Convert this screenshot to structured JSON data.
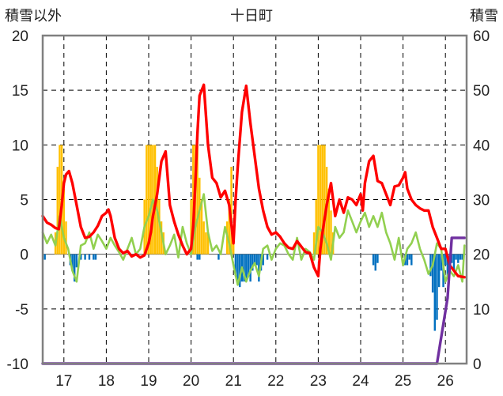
{
  "chart_data": {
    "type": "line",
    "title": "十日町",
    "left_axis_label": "積雪以外",
    "right_axis_label": "積雪",
    "ylim_left": [
      -10,
      20
    ],
    "yticks_left": [
      20,
      15,
      10,
      5,
      0,
      -5,
      -10
    ],
    "ylim_right": [
      0,
      60
    ],
    "yticks_right": [
      60,
      50,
      40,
      30,
      20,
      10,
      0
    ],
    "xlim": [
      16.5,
      26.5
    ],
    "xticks": [
      17,
      18,
      19,
      20,
      21,
      22,
      23,
      24,
      25,
      26
    ],
    "grid": true,
    "colors": {
      "red_series": "#ff0000",
      "green_series": "#92d050",
      "purple_series": "#7030a0",
      "orange_bars": "#ffc000",
      "blue_bars": "#0070c0",
      "frame": "#808080",
      "grid": "#000000"
    },
    "red_series": {
      "x": [
        16.5,
        16.6,
        16.7,
        16.8,
        16.88,
        16.95,
        17.0,
        17.05,
        17.12,
        17.2,
        17.3,
        17.4,
        17.5,
        17.6,
        17.7,
        17.8,
        17.9,
        18.0,
        18.05,
        18.1,
        18.2,
        18.3,
        18.4,
        18.5,
        18.6,
        18.7,
        18.8,
        18.9,
        19.0,
        19.05,
        19.1,
        19.2,
        19.3,
        19.4,
        19.5,
        19.6,
        19.7,
        19.8,
        19.9,
        20.0,
        20.05,
        20.1,
        20.15,
        20.2,
        20.3,
        20.4,
        20.5,
        20.6,
        20.7,
        20.8,
        20.9,
        21.0,
        21.05,
        21.1,
        21.2,
        21.3,
        21.4,
        21.5,
        21.6,
        21.7,
        21.8,
        21.9,
        22.0,
        22.1,
        22.2,
        22.3,
        22.4,
        22.5,
        22.6,
        22.7,
        22.8,
        22.9,
        23.0,
        23.05,
        23.1,
        23.2,
        23.3,
        23.4,
        23.5,
        23.6,
        23.7,
        23.8,
        23.9,
        24.0,
        24.05,
        24.1,
        24.2,
        24.3,
        24.4,
        24.5,
        24.6,
        24.7,
        24.8,
        24.9,
        25.0,
        25.05,
        25.1,
        25.2,
        25.3,
        25.4,
        25.5,
        25.6,
        25.7,
        25.8,
        25.9,
        26.0,
        26.1,
        26.2,
        26.3,
        26.45
      ],
      "values": [
        3.5,
        2.9,
        2.7,
        2.4,
        2.3,
        4.5,
        6.5,
        7.3,
        7.6,
        6.5,
        4.5,
        2.5,
        1.5,
        1.6,
        2.0,
        2.6,
        3.5,
        3.8,
        4.1,
        3.5,
        1.5,
        0.5,
        0.1,
        0.3,
        -0.2,
        0.0,
        -0.3,
        -0.1,
        1.0,
        2.0,
        3.5,
        5.5,
        8.5,
        9.4,
        4.5,
        3.0,
        1.8,
        0.8,
        0.0,
        0.5,
        2.5,
        6.5,
        11.0,
        14.5,
        15.5,
        10.0,
        7.0,
        6.5,
        5.2,
        5.8,
        4.5,
        1.0,
        5.0,
        8.0,
        13.0,
        15.4,
        12.0,
        9.0,
        6.0,
        4.0,
        2.5,
        1.8,
        2.0,
        1.6,
        1.0,
        0.6,
        0.5,
        1.2,
        0.7,
        0.2,
        0.1,
        -1.2,
        -2.0,
        0.5,
        2.0,
        4.5,
        6.5,
        3.5,
        5.0,
        3.8,
        5.2,
        5.0,
        4.5,
        5.5,
        4.0,
        6.5,
        8.5,
        9.0,
        6.7,
        6.5,
        5.5,
        4.5,
        6.2,
        6.3,
        7.0,
        7.5,
        6.0,
        5.0,
        4.5,
        4.2,
        4.0,
        4.0,
        2.5,
        1.5,
        0.5,
        0.5,
        -1.0,
        -1.5,
        -2.0,
        -2.1
      ]
    },
    "green_series": {
      "x": [
        16.5,
        16.6,
        16.7,
        16.8,
        16.9,
        17.0,
        17.1,
        17.2,
        17.3,
        17.4,
        17.5,
        17.6,
        17.7,
        17.8,
        17.9,
        18.0,
        18.1,
        18.2,
        18.3,
        18.4,
        18.5,
        18.6,
        18.7,
        18.8,
        18.9,
        19.0,
        19.1,
        19.2,
        19.3,
        19.4,
        19.5,
        19.6,
        19.7,
        19.8,
        19.9,
        20.0,
        20.1,
        20.2,
        20.3,
        20.4,
        20.5,
        20.6,
        20.7,
        20.8,
        20.9,
        21.0,
        21.1,
        21.2,
        21.3,
        21.4,
        21.5,
        21.6,
        21.7,
        21.8,
        21.9,
        22.0,
        22.1,
        22.2,
        22.3,
        22.4,
        22.5,
        22.6,
        22.7,
        22.8,
        22.9,
        23.0,
        23.1,
        23.2,
        23.3,
        23.4,
        23.5,
        23.6,
        23.7,
        23.8,
        23.9,
        24.0,
        24.1,
        24.2,
        24.3,
        24.4,
        24.5,
        24.6,
        24.7,
        24.8,
        24.9,
        25.0,
        25.1,
        25.2,
        25.3,
        25.4,
        25.5,
        25.6,
        25.7,
        25.8,
        25.9,
        26.0,
        26.1,
        26.2,
        26.3,
        26.4,
        26.45
      ],
      "values": [
        2.0,
        1.0,
        1.8,
        0.8,
        3.5,
        1.5,
        0.5,
        -1.5,
        -2.5,
        0.8,
        1.0,
        2.0,
        0.5,
        1.8,
        1.2,
        0.5,
        1.5,
        0.8,
        0.2,
        -0.5,
        0.5,
        1.5,
        0.0,
        0.5,
        2.5,
        3.5,
        5.0,
        4.0,
        2.0,
        0.0,
        0.8,
        1.8,
        -0.3,
        2.5,
        1.0,
        0.0,
        2.5,
        4.0,
        5.5,
        2.0,
        0.3,
        0.8,
        0.0,
        2.5,
        1.0,
        -1.0,
        -2.8,
        -1.2,
        -2.5,
        -1.5,
        -0.8,
        -2.0,
        0.5,
        0.8,
        -0.5,
        0.5,
        1.0,
        0.8,
        0.0,
        -0.5,
        1.5,
        -0.5,
        0.5,
        0.2,
        -0.5,
        2.5,
        2.0,
        1.0,
        -0.5,
        2.5,
        1.5,
        2.0,
        4.0,
        3.0,
        2.0,
        3.0,
        3.8,
        2.5,
        3.5,
        2.5,
        3.8,
        2.0,
        1.0,
        -0.5,
        1.5,
        -1.0,
        0.5,
        1.0,
        2.0,
        0.5,
        -0.5,
        -1.8,
        -1.0,
        1.0,
        0.5,
        -2.5,
        -1.5,
        -2.0,
        -1.0,
        -2.5,
        0.8
      ]
    },
    "purple_series": {
      "axis": "right",
      "x": [
        16.5,
        25.8,
        26.05,
        26.15,
        26.45
      ],
      "values": [
        0,
        0,
        12,
        23,
        23
      ]
    },
    "orange_bars": {
      "x": [
        16.8,
        16.85,
        16.9,
        16.95,
        17.0,
        17.05,
        18.9,
        18.95,
        19.0,
        19.05,
        19.1,
        19.15,
        19.2,
        19.25,
        19.3,
        19.35,
        20.0,
        20.05,
        20.1,
        20.15,
        20.2,
        20.25,
        20.3,
        20.35,
        20.4,
        20.85,
        20.9,
        20.95,
        21.0,
        22.9,
        22.95,
        23.0,
        23.05,
        23.1,
        23.15,
        23.2,
        23.25,
        23.3,
        23.35
      ],
      "values": [
        2,
        8,
        10,
        10,
        6,
        3,
        5,
        10,
        10,
        10,
        10,
        10,
        8,
        5,
        3,
        2,
        5,
        10,
        10,
        10,
        7,
        5,
        3,
        2,
        2,
        3,
        5,
        8,
        2,
        2,
        5,
        10,
        10,
        10,
        10,
        8,
        6,
        4,
        2
      ]
    },
    "blue_bars": {
      "x": [
        16.55,
        17.15,
        17.2,
        17.25,
        17.3,
        17.4,
        17.5,
        17.6,
        17.7,
        17.75,
        20.15,
        20.2,
        20.65,
        21.05,
        21.1,
        21.15,
        21.2,
        21.25,
        21.3,
        21.35,
        21.4,
        21.45,
        21.5,
        21.55,
        21.6,
        21.65,
        21.7,
        21.8,
        24.3,
        24.35,
        24.4,
        25.05,
        25.1,
        25.15,
        25.2,
        25.65,
        25.7,
        25.75,
        25.8,
        25.85,
        25.9,
        25.95,
        26.0,
        26.05,
        26.1,
        26.15,
        26.2,
        26.25,
        26.3,
        26.35,
        26.4
      ],
      "values": [
        -0.5,
        -1.0,
        -1.5,
        -2.5,
        -1.2,
        -0.5,
        -0.5,
        -0.5,
        -0.5,
        -0.5,
        -0.5,
        -0.5,
        -0.5,
        -2.0,
        -2.5,
        -3.0,
        -2.5,
        -2.5,
        -2.5,
        -2.0,
        -2.5,
        -1.5,
        -0.8,
        -1.0,
        -2.5,
        -1.5,
        -1.0,
        -0.5,
        -1.0,
        -1.5,
        -0.8,
        -1.0,
        -1.0,
        -0.5,
        -1.0,
        -2.0,
        -3.5,
        -7.0,
        -6.0,
        -3.0,
        -1.5,
        -3.0,
        -1.0,
        -2.0,
        -0.5,
        -0.8,
        -1.5,
        -0.5,
        -0.8,
        -0.5,
        -0.5
      ]
    }
  }
}
